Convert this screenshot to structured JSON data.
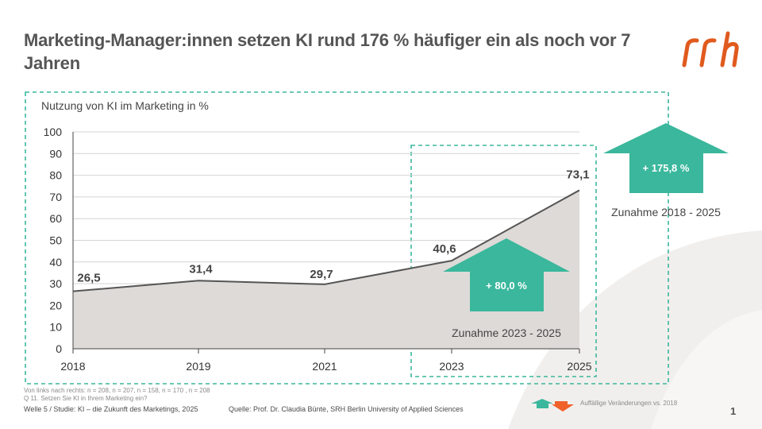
{
  "slide": {
    "title": "Marketing-Manager:innen setzen KI rund 176 % häufiger ein als noch vor 7 Jahren",
    "logo_text": "srh",
    "page_number": "1"
  },
  "colors": {
    "accent_teal": "#3ab79c",
    "area_fill": "#dedad7",
    "line": "#555555",
    "logo_orange": "#e05a1e",
    "decrease_orange": "#f0622a"
  },
  "chart_data": {
    "type": "area",
    "title": "Nutzung von KI im Marketing in %",
    "xlabel": "",
    "ylabel": "",
    "categories": [
      "2018",
      "2019",
      "2021",
      "2023",
      "2025"
    ],
    "values": [
      26.5,
      31.4,
      29.7,
      40.6,
      73.1
    ],
    "value_labels": [
      "26,5",
      "31,4",
      "29,7",
      "40,6",
      "73,1"
    ],
    "yticks": [
      0,
      10,
      20,
      30,
      40,
      50,
      60,
      70,
      80,
      90,
      100
    ],
    "ylim": [
      0,
      100
    ],
    "annotations": [
      {
        "label": "+ 80,0  %",
        "caption": "Zunahme 2023 - 2025"
      },
      {
        "label": "+ 175,8  %",
        "caption": "Zunahme 2018 - 2025"
      }
    ]
  },
  "footer": {
    "sample_note": "Von links nach rechts: n = 208, n = 207, n = 158, n = 170 , n = 208",
    "question_note": "Q 11. Setzen Sie KI in Ihrem Marketing ein?",
    "study": "Welle 5 / Studie: KI – die Zukunft des Marketings, 2025",
    "source": "Quelle: Prof. Dr. Claudia Bünte, SRH Berlin University of Applied Sciences",
    "legend_text": "Auffällige Veränderungen vs. 2018"
  },
  "icons": {
    "increase": "arrow-up-icon",
    "decrease": "arrow-down-icon"
  }
}
